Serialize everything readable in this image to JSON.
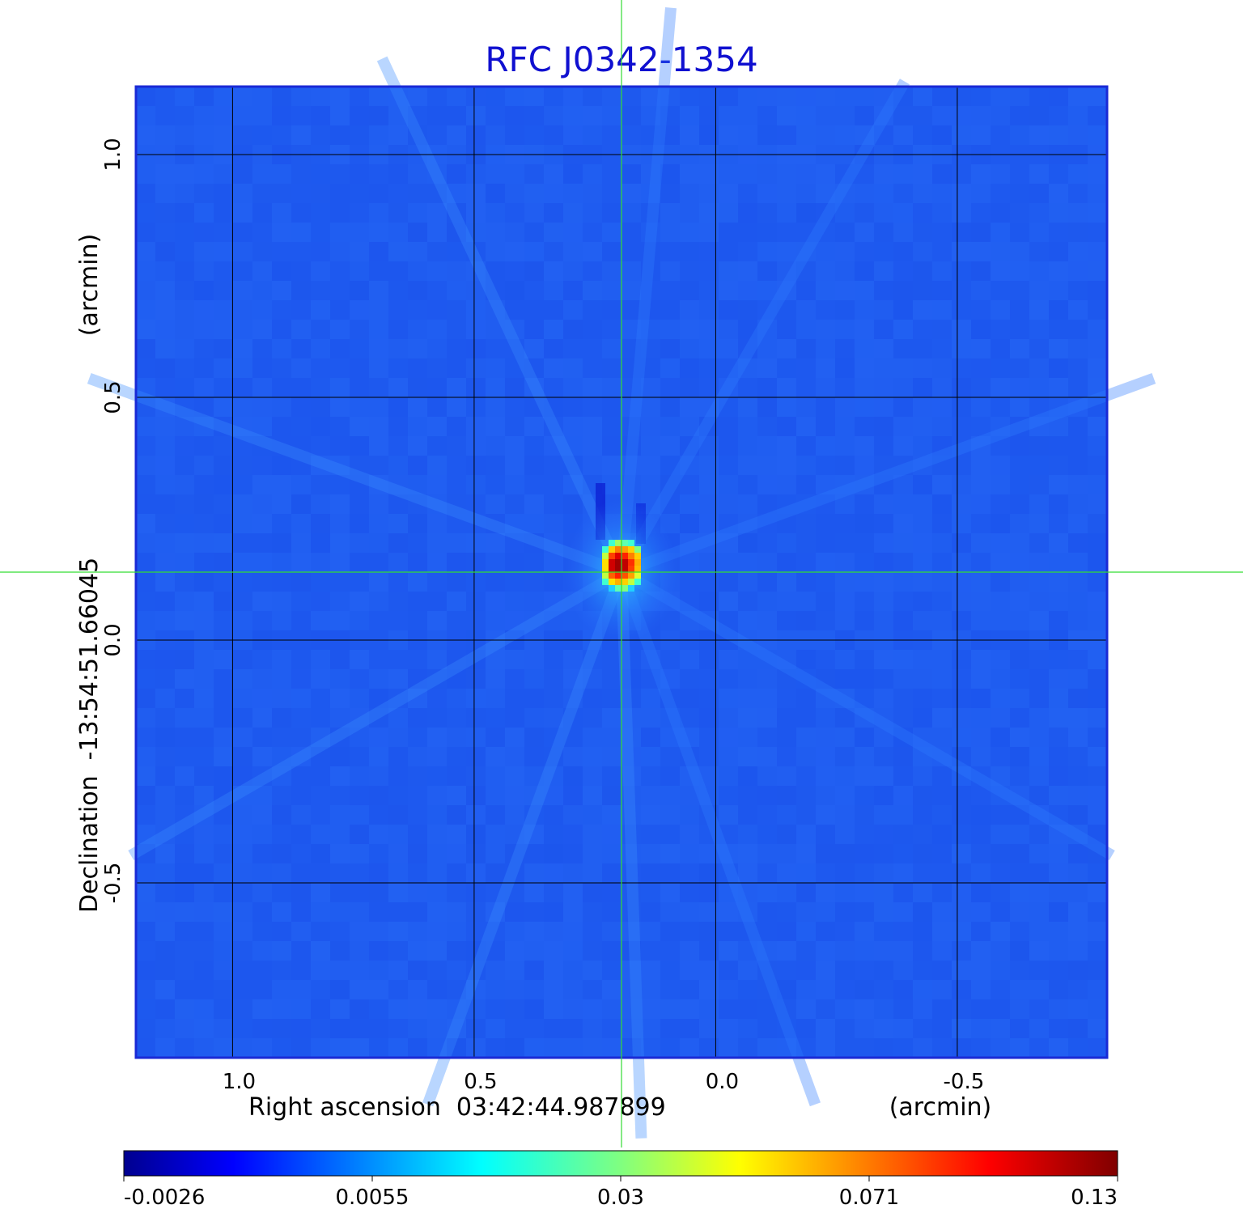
{
  "chart_data": {
    "type": "heatmap",
    "title": "RFC J0342-1354",
    "xlabel": "Right ascension  03:42:44.987899",
    "xunit": "(arcmin)",
    "ylabel": "Declination  -13:54:51.66045",
    "yunit": "(arcmin)",
    "x_axis": {
      "range": [
        1.2,
        -0.81
      ],
      "reversed": true,
      "ticks": [
        1.0,
        0.5,
        0.0,
        -0.5
      ],
      "tick_labels": [
        "1.0",
        "0.5",
        "0.0",
        "-0.5"
      ]
    },
    "y_axis": {
      "range": [
        -0.86,
        1.14
      ],
      "ticks": [
        1.0,
        0.5,
        0.0,
        -0.5
      ],
      "tick_labels": [
        "1.0",
        "0.5",
        "0.0",
        "-0.5"
      ]
    },
    "grid": true,
    "crosshair": {
      "x": 0.195,
      "y": 0.14,
      "color": "#33dd33"
    },
    "source": {
      "x": 0.195,
      "y": 0.14,
      "peak": 0.13
    },
    "colorbar": {
      "colormap": "jet",
      "placement": "bottom",
      "tick_labels": [
        "-0.0026",
        "0.0055",
        "0.03",
        "0.071",
        "0.13"
      ]
    }
  },
  "colors": {
    "title": "#1010d0",
    "background_level": "#1f5cf0",
    "frame": "#1a2ad6",
    "grid": "#000000"
  }
}
